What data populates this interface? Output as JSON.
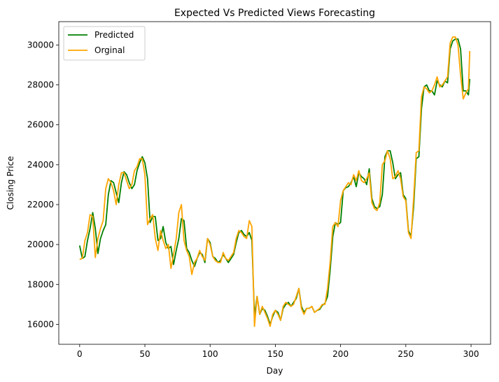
{
  "chart_data": {
    "type": "line",
    "title": "Expected Vs Predicted Views Forecasting",
    "xlabel": "Day",
    "ylabel": "Closing Price",
    "xlim": [
      -16,
      315
    ],
    "ylim": [
      15000,
      31170
    ],
    "xticks": [
      0,
      50,
      100,
      150,
      200,
      250,
      300
    ],
    "yticks": [
      16000,
      18000,
      20000,
      22000,
      24000,
      26000,
      28000,
      30000
    ],
    "grid": false,
    "legend": "top-left",
    "series": [
      {
        "name": "Predicted",
        "color": "#008000",
        "x": [
          0,
          2,
          4,
          6,
          8,
          10,
          12,
          14,
          16,
          18,
          20,
          22,
          24,
          26,
          28,
          30,
          32,
          34,
          36,
          38,
          40,
          42,
          44,
          46,
          48,
          50,
          52,
          54,
          56,
          58,
          60,
          62,
          64,
          66,
          68,
          70,
          72,
          74,
          76,
          78,
          80,
          82,
          84,
          86,
          88,
          90,
          92,
          94,
          96,
          98,
          100,
          102,
          104,
          106,
          108,
          110,
          112,
          114,
          116,
          118,
          120,
          122,
          124,
          126,
          128,
          130,
          132,
          134,
          136,
          138,
          140,
          142,
          144,
          146,
          148,
          150,
          152,
          154,
          156,
          158,
          160,
          162,
          164,
          166,
          168,
          170,
          172,
          174,
          176,
          178,
          180,
          182,
          184,
          186,
          188,
          190,
          192,
          194,
          196,
          198,
          200,
          202,
          204,
          206,
          208,
          210,
          212,
          214,
          216,
          218,
          220,
          222,
          224,
          226,
          228,
          230,
          232,
          234,
          236,
          238,
          240,
          242,
          244,
          246,
          248,
          250,
          252,
          254,
          256,
          258,
          260,
          262,
          264,
          266,
          268,
          270,
          272,
          274,
          276,
          278,
          280,
          282,
          284,
          286,
          288,
          290,
          292,
          294,
          296,
          298,
          299
        ],
        "values": [
          19950,
          19300,
          19400,
          20200,
          20800,
          21600,
          20800,
          19550,
          20300,
          20700,
          21000,
          22500,
          23200,
          23100,
          22600,
          22100,
          23100,
          23650,
          23500,
          23100,
          22800,
          23000,
          23700,
          24100,
          24400,
          24100,
          23300,
          21100,
          21400,
          21400,
          20200,
          20300,
          20900,
          20100,
          19800,
          19900,
          19000,
          19700,
          20300,
          21300,
          21200,
          19800,
          19600,
          19200,
          18900,
          19300,
          19600,
          19500,
          19100,
          20300,
          20100,
          19400,
          19300,
          19100,
          19200,
          19500,
          19300,
          19100,
          19300,
          19500,
          20100,
          20600,
          20700,
          20500,
          20400,
          20600,
          20200,
          16400,
          17400,
          16500,
          16800,
          16700,
          16400,
          16000,
          16400,
          16700,
          16600,
          16200,
          16800,
          17000,
          17100,
          16900,
          17100,
          17300,
          17800,
          16900,
          16600,
          16800,
          16800,
          16900,
          16600,
          16700,
          16750,
          16950,
          17050,
          17400,
          18700,
          20400,
          21100,
          21000,
          21100,
          22700,
          22850,
          22900,
          23100,
          23400,
          22900,
          23600,
          23400,
          23300,
          23000,
          23800,
          22300,
          21900,
          21800,
          21900,
          22500,
          24400,
          24700,
          24700,
          24100,
          23300,
          23500,
          23600,
          22500,
          22300,
          20700,
          20400,
          21900,
          24300,
          24400,
          26800,
          27900,
          28000,
          27700,
          27700,
          27500,
          28200,
          28000,
          27900,
          28200,
          28100,
          29800,
          30200,
          30300,
          30300,
          29800,
          27700,
          27700,
          27500,
          28300
        ]
      },
      {
        "name": "Orginal",
        "color": "#ffa500",
        "x": [
          0,
          2,
          4,
          6,
          8,
          10,
          12,
          14,
          16,
          18,
          20,
          22,
          24,
          26,
          28,
          30,
          32,
          34,
          36,
          38,
          40,
          42,
          44,
          46,
          48,
          50,
          52,
          54,
          56,
          58,
          60,
          62,
          64,
          66,
          68,
          70,
          72,
          74,
          76,
          78,
          80,
          82,
          84,
          86,
          88,
          90,
          92,
          94,
          96,
          98,
          100,
          102,
          104,
          106,
          108,
          110,
          112,
          114,
          116,
          118,
          120,
          122,
          124,
          126,
          128,
          130,
          132,
          134,
          136,
          138,
          140,
          142,
          144,
          146,
          148,
          150,
          152,
          154,
          156,
          158,
          160,
          162,
          164,
          166,
          168,
          170,
          172,
          174,
          176,
          178,
          180,
          182,
          184,
          186,
          188,
          190,
          192,
          194,
          196,
          198,
          200,
          202,
          204,
          206,
          208,
          210,
          212,
          214,
          216,
          218,
          220,
          222,
          224,
          226,
          228,
          230,
          232,
          234,
          236,
          238,
          240,
          242,
          244,
          246,
          248,
          250,
          252,
          254,
          256,
          258,
          260,
          262,
          264,
          266,
          268,
          270,
          272,
          274,
          276,
          278,
          280,
          282,
          284,
          286,
          288,
          290,
          292,
          294,
          296,
          298,
          299
        ],
        "values": [
          19250,
          19300,
          20200,
          20600,
          21500,
          21400,
          19350,
          20300,
          20800,
          21200,
          22800,
          23300,
          23100,
          22700,
          22000,
          23000,
          23600,
          23600,
          23200,
          22800,
          23000,
          23700,
          23900,
          24300,
          24300,
          23500,
          21000,
          21300,
          21500,
          20300,
          19700,
          20700,
          20200,
          19800,
          20000,
          18800,
          19500,
          20300,
          21600,
          22000,
          20200,
          19700,
          19400,
          18500,
          19100,
          19300,
          19700,
          19400,
          19200,
          20300,
          20000,
          19400,
          19200,
          19100,
          19100,
          19600,
          19300,
          19200,
          19400,
          19600,
          20300,
          20700,
          20600,
          20400,
          20300,
          21200,
          20900,
          15900,
          17400,
          16500,
          16900,
          16600,
          16300,
          15900,
          16500,
          16700,
          16500,
          16200,
          16900,
          17100,
          17000,
          16900,
          17000,
          17400,
          17800,
          16800,
          16500,
          16800,
          16800,
          16900,
          16600,
          16700,
          16800,
          17000,
          17000,
          17800,
          19100,
          20900,
          21100,
          20900,
          22200,
          22700,
          22900,
          23100,
          23000,
          23500,
          23200,
          23700,
          23200,
          23100,
          23300,
          23600,
          22100,
          21800,
          21700,
          22100,
          24000,
          24200,
          24700,
          24300,
          23300,
          23400,
          23700,
          23300,
          22400,
          22200,
          20600,
          20300,
          22300,
          24600,
          24700,
          27400,
          27900,
          27800,
          27600,
          27700,
          28000,
          28400,
          27900,
          28000,
          28200,
          28400,
          30100,
          30400,
          30400,
          30000,
          28500,
          27300,
          27600,
          27800,
          29700
        ]
      }
    ]
  }
}
